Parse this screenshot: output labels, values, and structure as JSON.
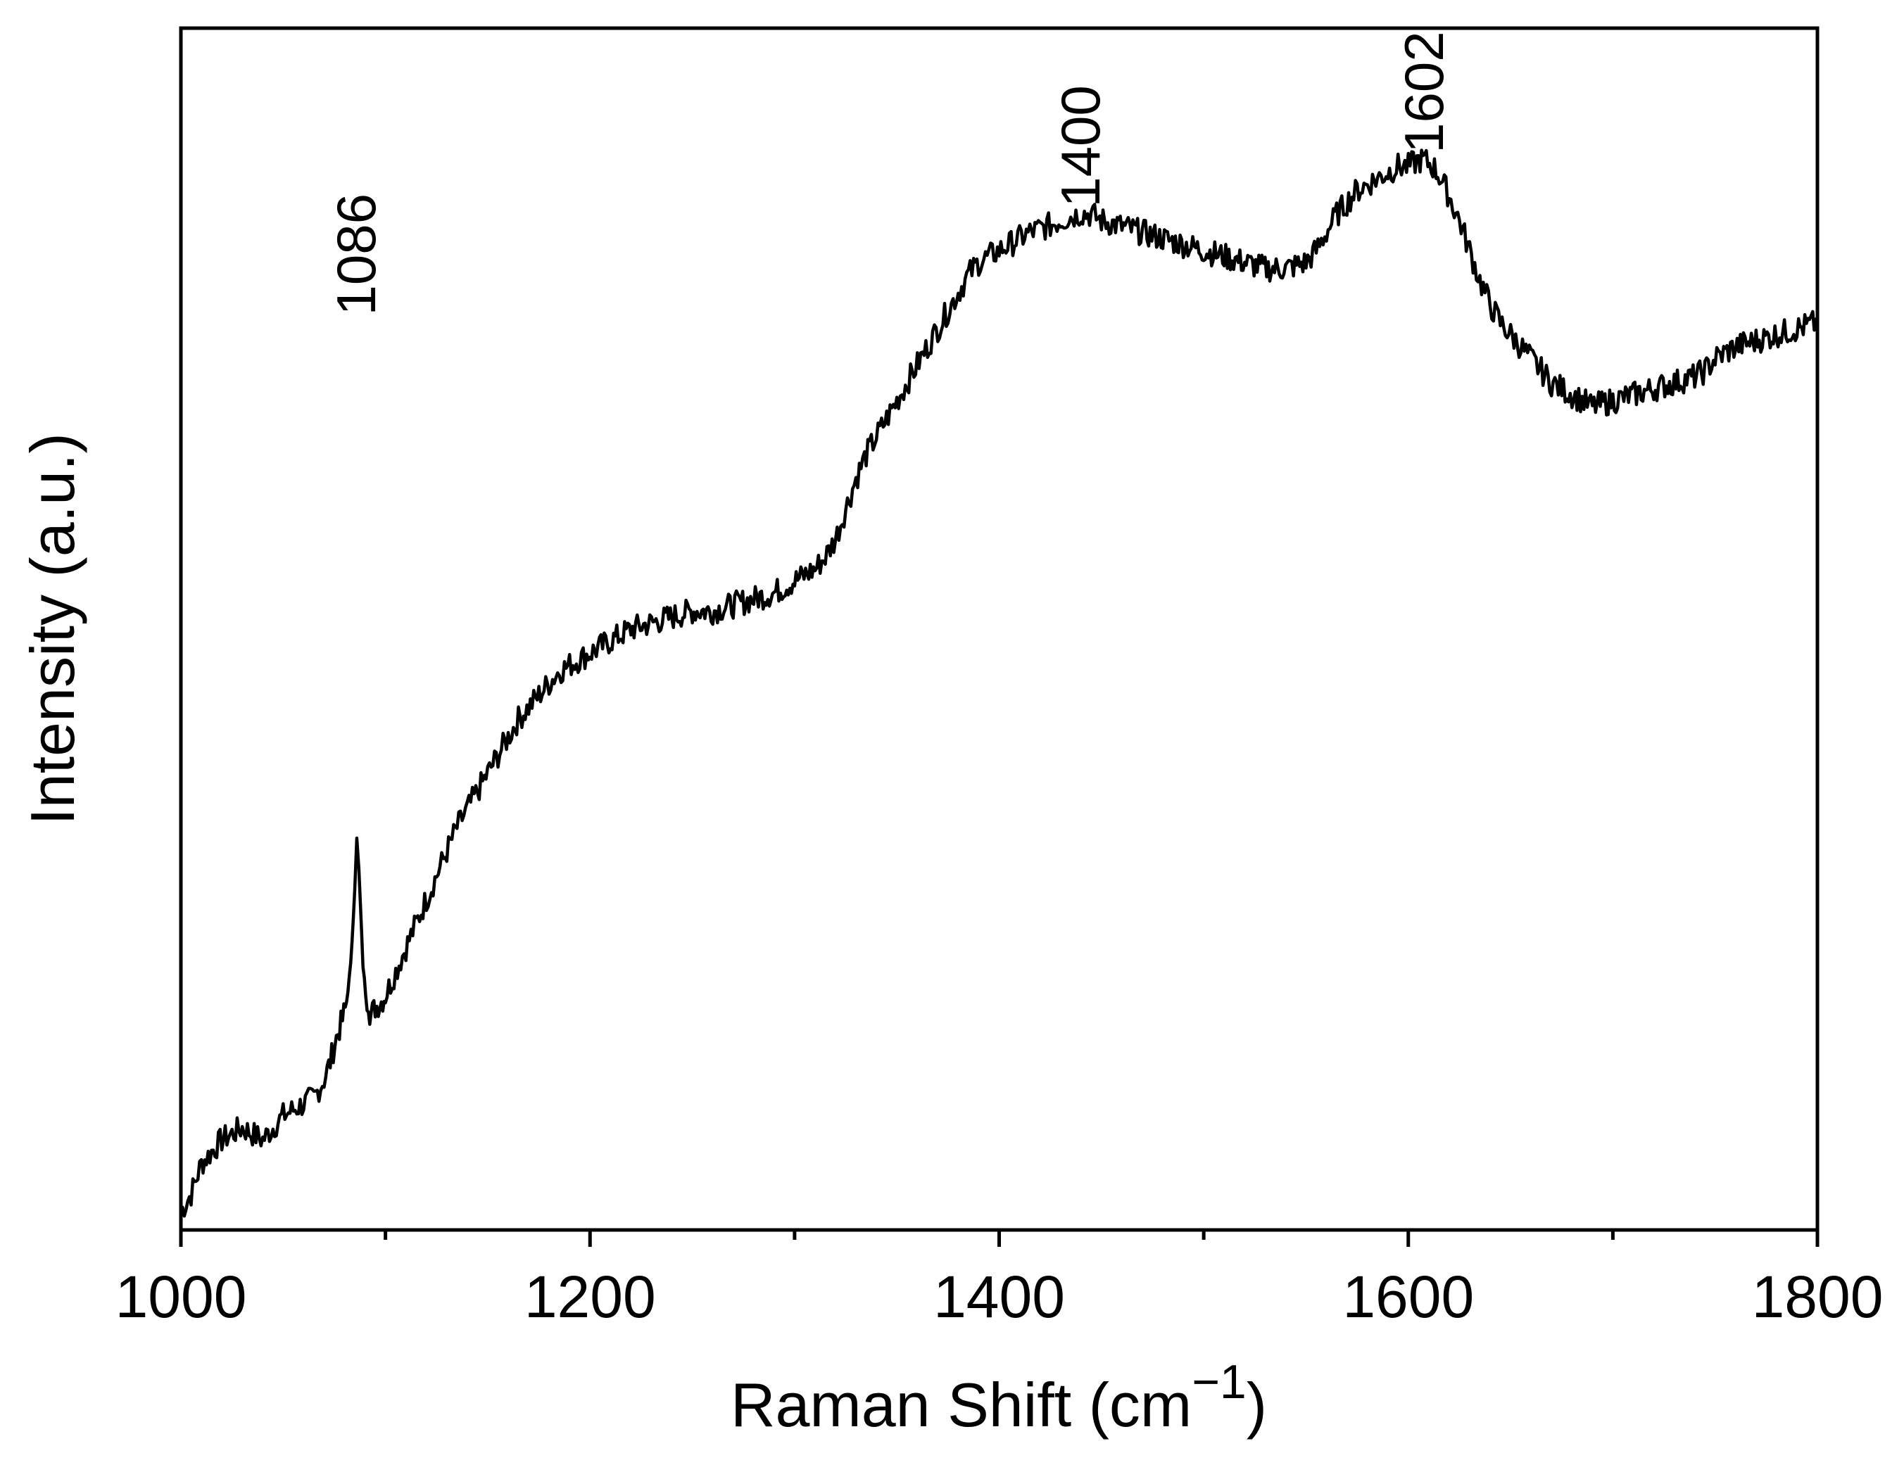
{
  "chart_data": {
    "type": "line",
    "title": "",
    "xlabel": "Raman Shift (cm",
    "xlabel_superscript": "−1",
    "xlabel_suffix": ")",
    "ylabel": "Intensity (a.u.)",
    "xlim": [
      1000,
      1800
    ],
    "ylim": [
      0,
      100
    ],
    "y_ticks_shown": false,
    "grid": false,
    "legend": "none",
    "line_color": "#000000",
    "x_major_ticks": [
      1000,
      1200,
      1400,
      1600,
      1800
    ],
    "x_minor_ticks": [
      1100,
      1300,
      1500,
      1700
    ],
    "x_tick_labels": [
      "1000",
      "1200",
      "1400",
      "1600",
      "1800"
    ],
    "annotations": [
      {
        "text": "1086",
        "x": 1086,
        "y": 75.5
      },
      {
        "text": "1400",
        "x": 1440,
        "y": 84.5
      },
      {
        "text": "1602",
        "x": 1608,
        "y": 89.0
      }
    ],
    "series": [
      {
        "x": [
          1000,
          1005,
          1010,
          1015,
          1020,
          1025,
          1030,
          1035,
          1040,
          1045,
          1050,
          1055,
          1060,
          1065,
          1070,
          1073,
          1076,
          1079,
          1081,
          1083,
          1085,
          1086,
          1087,
          1089,
          1091,
          1093,
          1095,
          1098,
          1100,
          1105,
          1110,
          1115,
          1120,
          1125,
          1130,
          1135,
          1140,
          1145,
          1150,
          1155,
          1160,
          1165,
          1170,
          1175,
          1180,
          1185,
          1190,
          1195,
          1200,
          1210,
          1220,
          1230,
          1240,
          1250,
          1260,
          1270,
          1280,
          1290,
          1300,
          1310,
          1315,
          1320,
          1325,
          1330,
          1335,
          1340,
          1345,
          1350,
          1355,
          1360,
          1365,
          1370,
          1375,
          1380,
          1385,
          1390,
          1395,
          1400,
          1405,
          1410,
          1415,
          1420,
          1425,
          1430,
          1435,
          1440,
          1445,
          1450,
          1460,
          1470,
          1480,
          1490,
          1500,
          1510,
          1520,
          1530,
          1540,
          1550,
          1555,
          1560,
          1565,
          1570,
          1575,
          1580,
          1585,
          1590,
          1595,
          1600,
          1605,
          1608,
          1612,
          1616,
          1620,
          1625,
          1630,
          1635,
          1640,
          1645,
          1650,
          1655,
          1660,
          1665,
          1670,
          1675,
          1680,
          1685,
          1690,
          1700,
          1710,
          1720,
          1730,
          1740,
          1745,
          1750,
          1755,
          1760,
          1770,
          1780,
          1790,
          1800
        ],
        "y": [
          1.5,
          3.0,
          5.5,
          6.5,
          7.5,
          8.0,
          8.5,
          8.0,
          7.5,
          8.5,
          9.5,
          10.0,
          10.5,
          11.0,
          12.5,
          14.0,
          16.0,
          17.5,
          19.0,
          22.0,
          28.5,
          32.5,
          30.0,
          22.0,
          18.5,
          18.0,
          18.5,
          19.0,
          19.5,
          21.5,
          23.5,
          25.5,
          27.5,
          29.5,
          31.5,
          33.5,
          35.0,
          36.5,
          38.0,
          39.5,
          41.0,
          42.5,
          43.5,
          44.5,
          45.5,
          46.5,
          47.0,
          47.5,
          48.0,
          49.0,
          50.0,
          50.5,
          51.0,
          51.5,
          51.5,
          52.0,
          52.5,
          53.0,
          54.0,
          55.0,
          56.0,
          57.5,
          60.0,
          62.5,
          64.5,
          66.0,
          67.5,
          69.0,
          70.5,
          72.0,
          73.5,
          75.0,
          76.5,
          78.0,
          79.5,
          80.5,
          81.0,
          81.5,
          82.0,
          82.5,
          83.0,
          83.3,
          83.6,
          84.0,
          84.3,
          84.6,
          84.5,
          84.0,
          83.5,
          83.0,
          82.5,
          82.0,
          81.5,
          81.0,
          80.5,
          80.0,
          80.0,
          80.5,
          81.5,
          83.0,
          84.5,
          85.5,
          86.5,
          87.0,
          87.5,
          88.0,
          88.5,
          88.5,
          89.0,
          89.0,
          88.5,
          87.5,
          86.0,
          84.0,
          81.5,
          79.0,
          77.0,
          75.5,
          74.5,
          73.5,
          72.5,
          71.5,
          70.5,
          70.0,
          69.5,
          69.0,
          68.5,
          69.0,
          69.5,
          70.0,
          70.5,
          71.0,
          71.5,
          72.5,
          73.0,
          73.5,
          74.0,
          74.5,
          75.0,
          75.5
        ]
      }
    ]
  }
}
